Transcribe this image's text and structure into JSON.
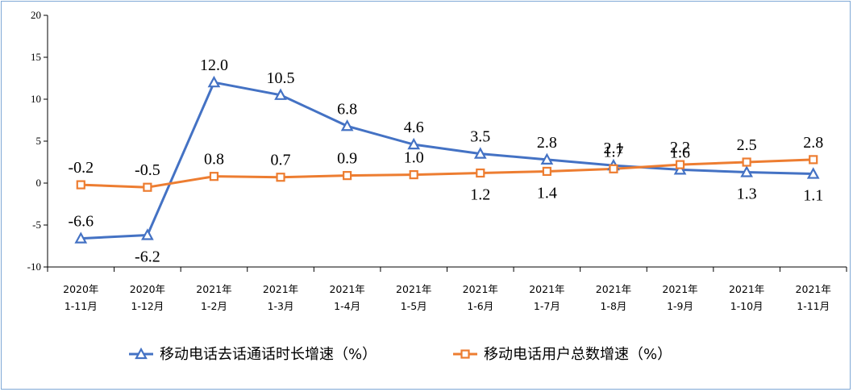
{
  "chart_data": {
    "type": "line",
    "categories": [
      [
        "2020年",
        "1-11月"
      ],
      [
        "2020年",
        "1-12月"
      ],
      [
        "2021年",
        "1-2月"
      ],
      [
        "2021年",
        "1-3月"
      ],
      [
        "2021年",
        "1-4月"
      ],
      [
        "2021年",
        "1-5月"
      ],
      [
        "2021年",
        "1-6月"
      ],
      [
        "2021年",
        "1-7月"
      ],
      [
        "2021年",
        "1-8月"
      ],
      [
        "2021年",
        "1-9月"
      ],
      [
        "2021年",
        "1-10月"
      ],
      [
        "2021年",
        "1-11月"
      ]
    ],
    "series": [
      {
        "name": "移动电话去话通话时长增速（%）",
        "color": "#4472c4",
        "marker": "triangle",
        "values": [
          -6.6,
          -6.2,
          12.0,
          10.5,
          6.8,
          4.6,
          3.5,
          2.8,
          2.1,
          1.6,
          1.3,
          1.1
        ],
        "labels": [
          "-6.6",
          "-6.2",
          "12.0",
          "10.5",
          "6.8",
          "4.6",
          "3.5",
          "2.8",
          "2.1",
          "1.6",
          "1.3",
          "1.1"
        ],
        "label_pos": [
          "above",
          "below",
          "above",
          "above",
          "above",
          "above",
          "above",
          "above",
          "above",
          "above",
          "below",
          "below"
        ]
      },
      {
        "name": "移动电话用户总数增速（%）",
        "color": "#ed7d31",
        "marker": "square",
        "values": [
          -0.2,
          -0.5,
          0.8,
          0.7,
          0.9,
          1.0,
          1.2,
          1.4,
          1.7,
          2.2,
          2.5,
          2.8
        ],
        "labels": [
          "-0.2",
          "-0.5",
          "0.8",
          "0.7",
          "0.9",
          "1.0",
          "1.2",
          "1.4",
          "1.7",
          "2.2",
          "2.5",
          "2.8"
        ],
        "label_pos": [
          "above",
          "above",
          "above",
          "above",
          "above",
          "above",
          "below",
          "below",
          "above",
          "above",
          "above",
          "above"
        ]
      }
    ],
    "y_ticks": [
      "20",
      "15",
      "10",
      "5",
      "0",
      "-5",
      "-10"
    ],
    "ylim": [
      -10,
      20
    ],
    "title": "",
    "xlabel": "",
    "ylabel": "",
    "legend_position": "bottom"
  }
}
